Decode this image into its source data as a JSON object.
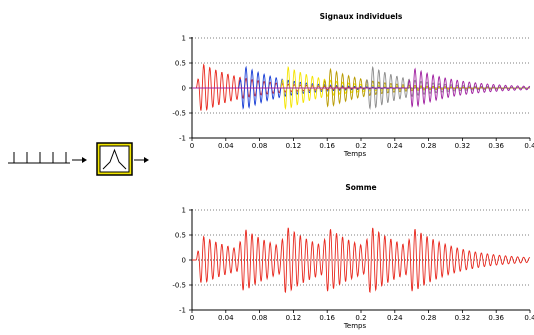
{
  "chart_data": [
    {
      "type": "line",
      "title": "Signaux individuels",
      "xlabel": "Temps",
      "ylabel": "",
      "xlim": [
        0,
        0.4
      ],
      "ylim": [
        -1,
        1
      ],
      "xticks": [
        "0",
        "0.04",
        "0.08",
        "0.12",
        "0.16",
        "0.2",
        "0.24",
        "0.28",
        "0.32",
        "0.36",
        "0.4"
      ],
      "yticks": [
        "1",
        "0.5",
        "0",
        "-0.5",
        "-1"
      ],
      "grid": "horizontal dotted",
      "series": [
        {
          "color": "#e8281e",
          "onset": 0.005,
          "amplitude": 0.55,
          "freq": 140,
          "decay": 0.055
        },
        {
          "color": "#1a3fd6",
          "onset": 0.055,
          "amplitude": 0.5,
          "freq": 140,
          "decay": 0.05
        },
        {
          "color": "#f4e400",
          "onset": 0.105,
          "amplitude": 0.5,
          "freq": 140,
          "decay": 0.05
        },
        {
          "color": "#b89a00",
          "onset": 0.155,
          "amplitude": 0.45,
          "freq": 140,
          "decay": 0.05
        },
        {
          "color": "#8c8c8c",
          "onset": 0.205,
          "amplitude": 0.5,
          "freq": 140,
          "decay": 0.05
        },
        {
          "color": "#a020a0",
          "onset": 0.255,
          "amplitude": 0.45,
          "freq": 140,
          "decay": 0.055
        }
      ]
    },
    {
      "type": "line",
      "title": "Somme",
      "xlabel": "Temps",
      "ylabel": "",
      "xlim": [
        0,
        0.4
      ],
      "ylim": [
        -1,
        1
      ],
      "xticks": [
        "0",
        "0.04",
        "0.08",
        "0.12",
        "0.16",
        "0.2",
        "0.24",
        "0.28",
        "0.32",
        "0.36",
        "0.4"
      ],
      "yticks": [
        "1",
        "0.5",
        "0",
        "-0.5",
        "-1"
      ],
      "grid": "horizontal dotted",
      "series": [
        {
          "color": "#e8281e",
          "sum_of_top_series": true
        }
      ]
    }
  ],
  "diagram": {
    "impulse_count": 5,
    "filter_box_color": "#f2e600"
  }
}
